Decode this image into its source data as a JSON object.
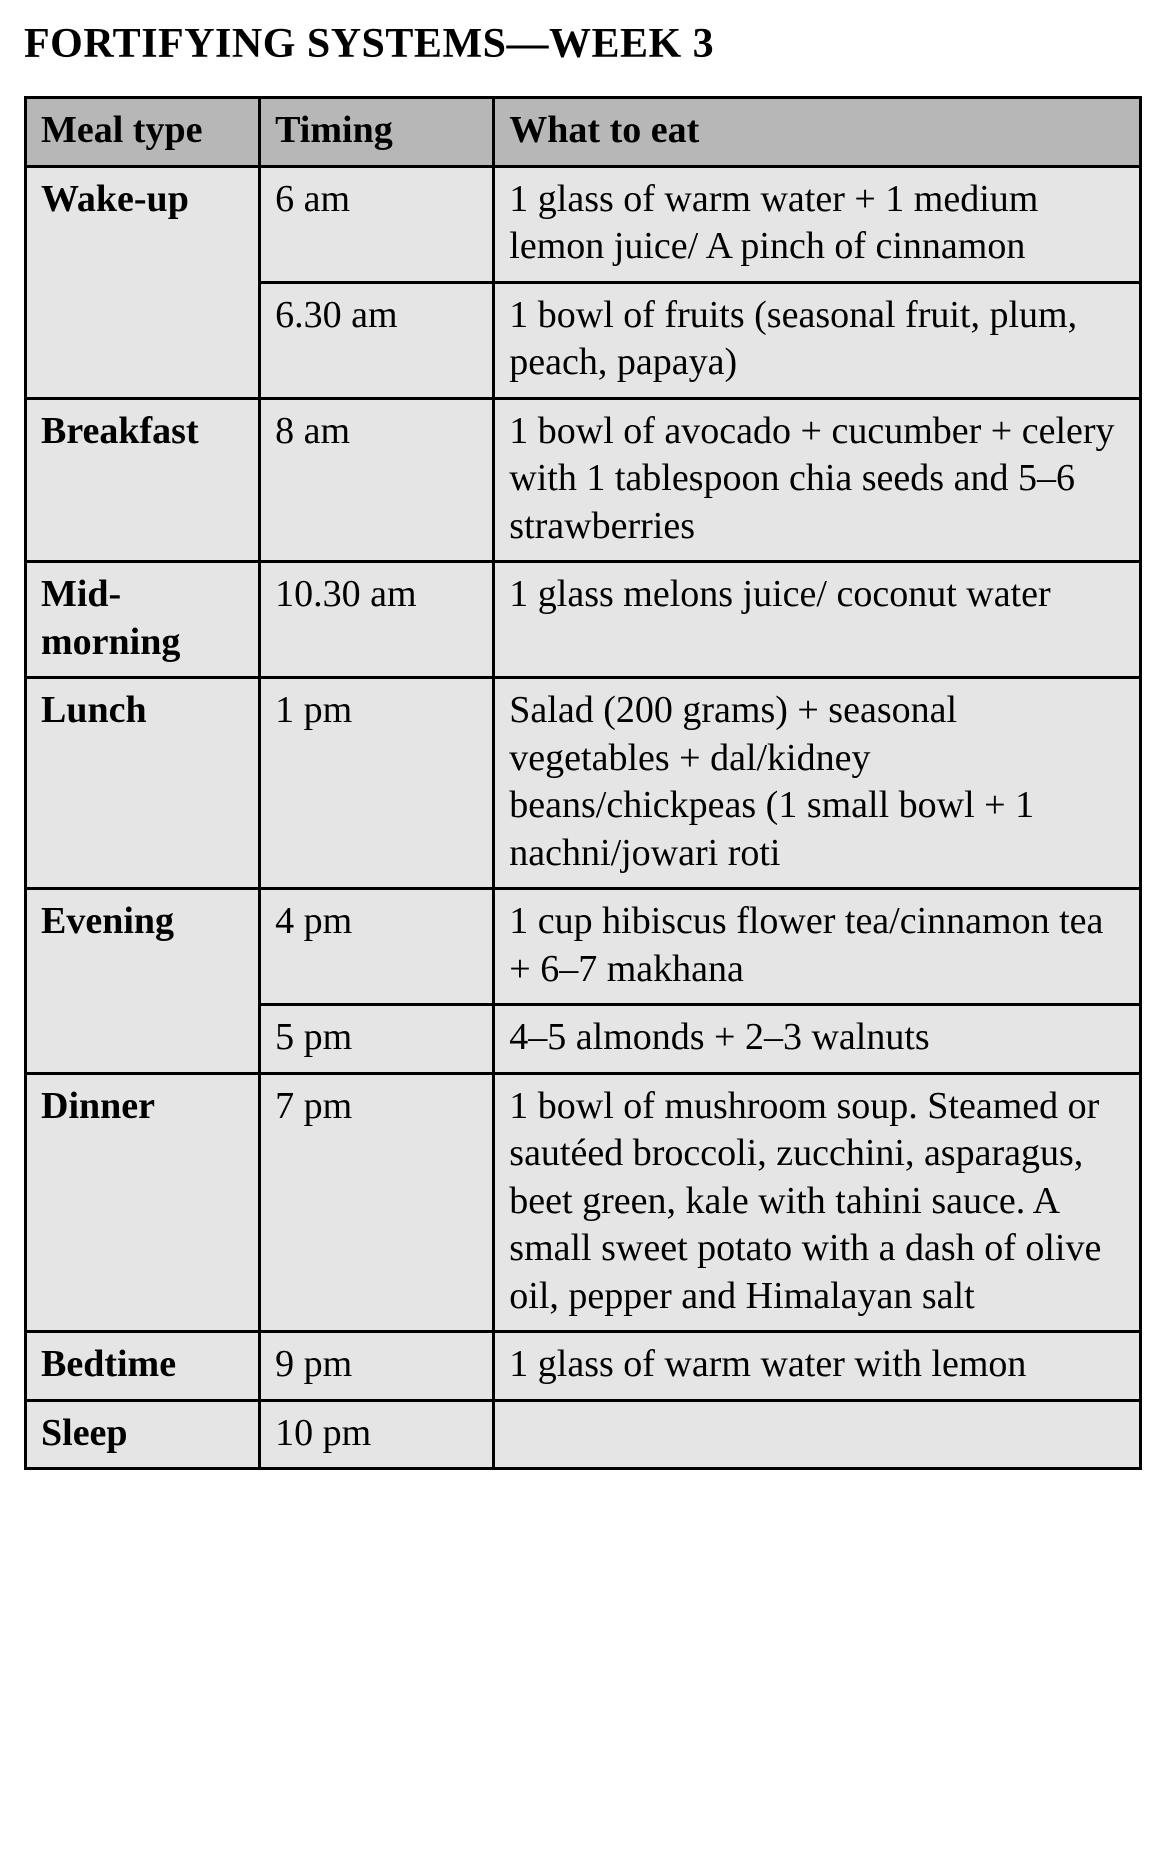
{
  "title": "FORTIFYING SYSTEMS—WEEK 3",
  "table": {
    "type": "table",
    "background_color": "#e5e5e5",
    "header_background_color": "#b7b7b7",
    "border_color": "#000000",
    "border_width": 3,
    "font_family": "Times New Roman",
    "cell_fontsize": 38,
    "title_fontsize": 42,
    "column_widths_pct": [
      21,
      21,
      58
    ],
    "columns": [
      "Meal type",
      "Timing",
      "What to eat"
    ],
    "rows": [
      {
        "meal_type": "Wake-up",
        "meal_rowspan": 2,
        "timing": "6 am",
        "what": "1 glass of warm water + 1 medium lemon juice/ A pinch of cinnamon"
      },
      {
        "meal_type": null,
        "meal_rowspan": 0,
        "timing": "6.30 am",
        "what": "1 bowl of fruits (seasonal fruit, plum, peach, papaya)"
      },
      {
        "meal_type": "Breakfast",
        "meal_rowspan": 1,
        "timing": "8 am",
        "what": "1 bowl of avocado + cucumber + celery with 1 tablespoon chia seeds and 5–6 strawberries"
      },
      {
        "meal_type": "Mid-morning",
        "meal_rowspan": 1,
        "timing": "10.30 am",
        "what": "1 glass melons juice/ coconut water"
      },
      {
        "meal_type": "Lunch",
        "meal_rowspan": 1,
        "timing": "1 pm",
        "what": "Salad (200 grams) + seasonal vegetables + dal/kidney beans/chickpeas (1 small bowl + 1 nachni/jowari roti"
      },
      {
        "meal_type": "Evening",
        "meal_rowspan": 2,
        "timing": "4 pm",
        "what": "1 cup hibiscus flower tea/cinnamon tea + 6–7 makhana"
      },
      {
        "meal_type": null,
        "meal_rowspan": 0,
        "timing": "5 pm",
        "what": "4–5 almonds + 2–3 walnuts"
      },
      {
        "meal_type": "Dinner",
        "meal_rowspan": 1,
        "timing": "7 pm",
        "what": "1 bowl of mushroom soup. Steamed or sautéed broccoli, zucchini, asparagus, beet green, kale with tahini sauce. A small sweet potato with a dash of olive oil, pepper and Himalayan salt"
      },
      {
        "meal_type": "Bedtime",
        "meal_rowspan": 1,
        "timing": "9 pm",
        "what": "1 glass of warm water with lemon"
      },
      {
        "meal_type": "Sleep",
        "meal_rowspan": 1,
        "timing": "10 pm",
        "what": ""
      }
    ]
  }
}
